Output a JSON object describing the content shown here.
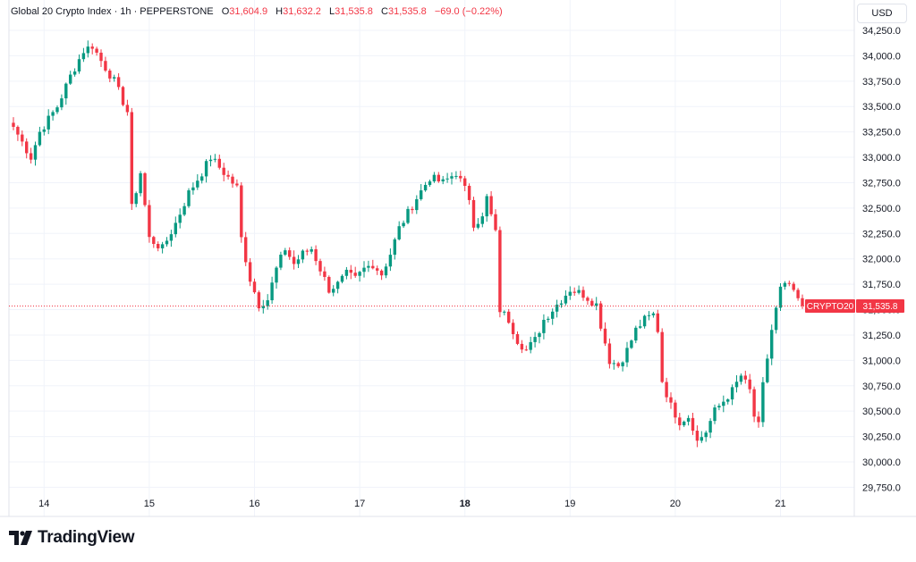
{
  "legend": {
    "title": "Global 20 Crypto Index · 1h · PEPPERSTONE",
    "o_label": "O",
    "o_value": "31,604.9",
    "h_label": "H",
    "h_value": "31,632.2",
    "l_label": "L",
    "l_value": "31,535.8",
    "c_label": "C",
    "c_value": "31,535.8",
    "change": "−69.0 (−0.22%)"
  },
  "currency": "USD",
  "price_tag": {
    "symbol": "CRYPTO20",
    "price": "31,535.8"
  },
  "brand": "TradingView",
  "colors": {
    "up": "#089981",
    "down": "#f23645",
    "grid": "#f0f3fa",
    "text": "#131722"
  },
  "chart_data": {
    "type": "candlestick",
    "ylim": [
      29600,
      34450
    ],
    "y_ticks": [
      34250,
      34000,
      33750,
      33500,
      33250,
      33000,
      32750,
      32500,
      32250,
      32000,
      31750,
      31500,
      31250,
      31000,
      30750,
      30500,
      30250,
      30000,
      29750
    ],
    "y_tick_labels": [
      "34,250.0",
      "34,000.0",
      "33,750.0",
      "33,500.0",
      "33,250.0",
      "33,000.0",
      "32,750.0",
      "32,500.0",
      "32,250.0",
      "32,000.0",
      "31,750.0",
      "31,500.0",
      "31,250.0",
      "31,000.0",
      "30,750.0",
      "30,500.0",
      "30,250.0",
      "30,000.0",
      "29,750.0"
    ],
    "x_ticks": [
      {
        "label": "14",
        "bar": 7,
        "bold": false
      },
      {
        "label": "15",
        "bar": 31,
        "bold": false
      },
      {
        "label": "16",
        "bar": 55,
        "bold": false
      },
      {
        "label": "17",
        "bar": 79,
        "bold": false
      },
      {
        "label": "18",
        "bar": 103,
        "bold": true
      },
      {
        "label": "19",
        "bar": 127,
        "bold": false
      },
      {
        "label": "20",
        "bar": 151,
        "bold": false
      },
      {
        "label": "21",
        "bar": 175,
        "bold": false
      }
    ],
    "last_price": 31535.8,
    "anchors": [
      [
        0,
        33300
      ],
      [
        2,
        33150
      ],
      [
        4,
        33000
      ],
      [
        6,
        33250
      ],
      [
        10,
        33500
      ],
      [
        13,
        33800
      ],
      [
        16,
        34050
      ],
      [
        18,
        34100
      ],
      [
        20,
        33950
      ],
      [
        23,
        33750
      ],
      [
        26,
        33450
      ],
      [
        27,
        32500
      ],
      [
        29,
        32850
      ],
      [
        31,
        32200
      ],
      [
        34,
        32100
      ],
      [
        37,
        32350
      ],
      [
        40,
        32650
      ],
      [
        43,
        32850
      ],
      [
        45,
        33000
      ],
      [
        48,
        32850
      ],
      [
        51,
        32700
      ],
      [
        52,
        32200
      ],
      [
        54,
        31800
      ],
      [
        56,
        31550
      ],
      [
        58,
        31600
      ],
      [
        60,
        31900
      ],
      [
        62,
        32100
      ],
      [
        64,
        31950
      ],
      [
        66,
        32050
      ],
      [
        68,
        32100
      ],
      [
        70,
        31900
      ],
      [
        72,
        31700
      ],
      [
        74,
        31750
      ],
      [
        76,
        31850
      ],
      [
        78,
        31800
      ],
      [
        80,
        31900
      ],
      [
        82,
        31950
      ],
      [
        84,
        31850
      ],
      [
        86,
        32050
      ],
      [
        88,
        32300
      ],
      [
        92,
        32600
      ],
      [
        95,
        32800
      ],
      [
        98,
        32750
      ],
      [
        101,
        32850
      ],
      [
        104,
        32600
      ],
      [
        105,
        32350
      ],
      [
        107,
        32400
      ],
      [
        108,
        32600
      ],
      [
        110,
        32250
      ],
      [
        111,
        31500
      ],
      [
        113,
        31400
      ],
      [
        115,
        31200
      ],
      [
        117,
        31100
      ],
      [
        119,
        31200
      ],
      [
        121,
        31400
      ],
      [
        123,
        31500
      ],
      [
        125,
        31600
      ],
      [
        127,
        31700
      ],
      [
        130,
        31650
      ],
      [
        133,
        31550
      ],
      [
        134,
        31350
      ],
      [
        136,
        31000
      ],
      [
        138,
        30950
      ],
      [
        140,
        31100
      ],
      [
        142,
        31300
      ],
      [
        144,
        31400
      ],
      [
        146,
        31450
      ],
      [
        147,
        31300
      ],
      [
        148,
        30800
      ],
      [
        150,
        30550
      ],
      [
        152,
        30400
      ],
      [
        154,
        30450
      ],
      [
        155,
        30350
      ],
      [
        156,
        30200
      ],
      [
        158,
        30300
      ],
      [
        160,
        30500
      ],
      [
        162,
        30600
      ],
      [
        164,
        30700
      ],
      [
        166,
        30850
      ],
      [
        168,
        30700
      ],
      [
        169,
        30450
      ],
      [
        170,
        30350
      ],
      [
        171,
        30750
      ],
      [
        173,
        31300
      ],
      [
        174,
        31500
      ],
      [
        175,
        31700
      ],
      [
        177,
        31750
      ],
      [
        178,
        31650
      ],
      [
        179,
        31600
      ],
      [
        180,
        31536
      ]
    ]
  }
}
